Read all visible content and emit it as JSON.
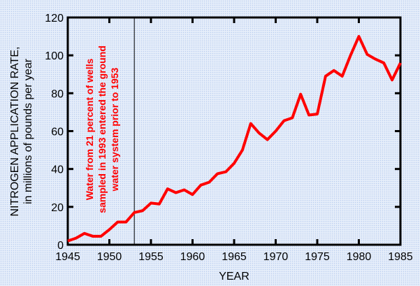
{
  "chart_data": {
    "type": "line",
    "title": "",
    "xlabel": "YEAR",
    "ylabel": "NITROGEN APPLICATION RATE,",
    "ylabel_sub": "in millions of pounds per year",
    "xlim": [
      1945,
      1985
    ],
    "ylim": [
      0,
      120
    ],
    "xticks": [
      1945,
      1950,
      1955,
      1960,
      1965,
      1970,
      1975,
      1980,
      1985
    ],
    "yticks": [
      0,
      20,
      40,
      60,
      80,
      100,
      120
    ],
    "grid": false,
    "series": [
      {
        "name": "Nitrogen application rate",
        "color": "#ff0000",
        "x": [
          1945,
          1946,
          1947,
          1948,
          1949,
          1950,
          1951,
          1952,
          1953,
          1954,
          1955,
          1956,
          1957,
          1958,
          1959,
          1960,
          1961,
          1962,
          1963,
          1964,
          1965,
          1966,
          1967,
          1968,
          1969,
          1970,
          1971,
          1972,
          1973,
          1974,
          1975,
          1976,
          1977,
          1978,
          1979,
          1980,
          1981,
          1982,
          1983,
          1984,
          1985
        ],
        "y": [
          2,
          3.5,
          6,
          4.5,
          4.5,
          8,
          12,
          12,
          17,
          18,
          22,
          21.5,
          29.5,
          27.5,
          29,
          26.5,
          31.5,
          33,
          37.5,
          38.5,
          43,
          50,
          64,
          59,
          55.5,
          60,
          65.5,
          67,
          79.5,
          68.5,
          69,
          89,
          92,
          89,
          100,
          110,
          100.5,
          98,
          96,
          87,
          96
        ]
      }
    ],
    "reference_line": {
      "x": 1953,
      "color": "#000000"
    },
    "annotation": {
      "lines": [
        "Water from 21 percent of wells",
        "sampled in 1993 entered the ground",
        "water system prior to 1953"
      ],
      "color": "#ff0000"
    }
  }
}
